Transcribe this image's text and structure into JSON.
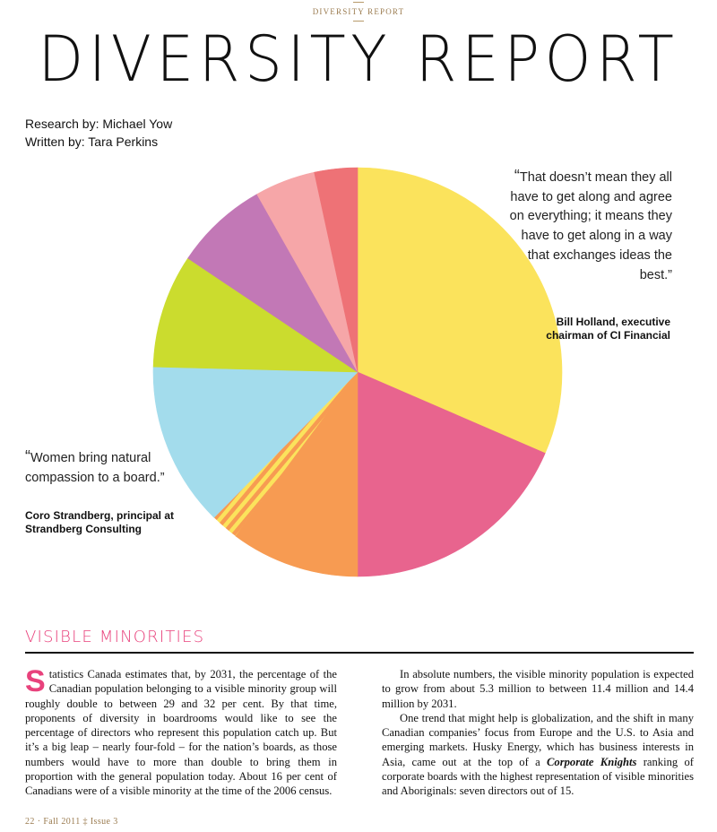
{
  "running_head": "DIVERSITY REPORT",
  "title": "DIVERSITY REPORT",
  "credits": {
    "research": "Research by: Michael Yow",
    "written": "Written by: Tara Perkins"
  },
  "quote_right": {
    "open_mark": "“",
    "text": "That doesn’t mean they all have to get along and agree on everything; it means they have to get along in a way that exchanges ideas the best.”",
    "attribution": "Bill Holland, executive chairman of CI Financial"
  },
  "quote_left": {
    "open_mark": "“",
    "text": "Women bring natural compassion to a board.”",
    "attribution": "Coro Strandberg, principal at Strandberg Consulting"
  },
  "chart_data": {
    "type": "pie",
    "title": "",
    "start_angle_deg": 0,
    "direction": "clockwise",
    "slices": [
      {
        "value": 31.5,
        "color": "#fbe35c",
        "pattern": "solid"
      },
      {
        "value": 18.5,
        "color": "#e8648e",
        "pattern": "solid"
      },
      {
        "value": 10.2,
        "color": "#f79b52",
        "pattern": "solid"
      },
      {
        "value": 2.2,
        "color": "#fbe35c",
        "pattern": "stripes"
      },
      {
        "value": 13.0,
        "color": "#a3dcec",
        "pattern": "solid"
      },
      {
        "value": 9.0,
        "color": "#cbdc2e",
        "pattern": "solid"
      },
      {
        "value": 7.4,
        "color": "#c278b6",
        "pattern": "solid"
      },
      {
        "value": 4.8,
        "color": "#f6a6a8",
        "pattern": "solid"
      },
      {
        "value": 3.4,
        "color": "#ee7276",
        "pattern": "solid"
      }
    ]
  },
  "section": {
    "title": "VISIBLE MINORITIES"
  },
  "body": {
    "col1": {
      "dropcap": "S",
      "para1": "tatistics Canada estimates that, by 2031, the percentage of the Canadian population belonging to a visible minority group will roughly double to between 29 and 32 per cent. By that time, proponents of diversity in boardrooms would like to see the percentage of directors who represent this population catch up. But it’s a big leap – nearly four-fold – for the nation’s boards, as those numbers would have to more than double to bring them in proportion with the general population today. About 16 per cent of Canadians were of a visible minority at the time of the 2006 census."
    },
    "col2": {
      "para1": "In absolute numbers, the visible minority population is expected to grow from about 5.3 million to between 11.4 million and 14.4 million by 2031.",
      "para2_a": "One trend that might help is globalization, and the shift in many Canadian companies’ focus from Europe and the U.S. to Asia and emerging markets. Husky Energy, which has business interests in Asia, came out at the top of a ",
      "para2_em": "Corporate Knights",
      "para2_b": " ranking of corporate boards with the highest representation of visible minorities and Aboriginals: seven directors out of 15."
    }
  },
  "folio": "22 · Fall 2011 ‡ Issue 3",
  "colors": {
    "accent": "#e8427c",
    "gold": "#9a7b4f"
  }
}
